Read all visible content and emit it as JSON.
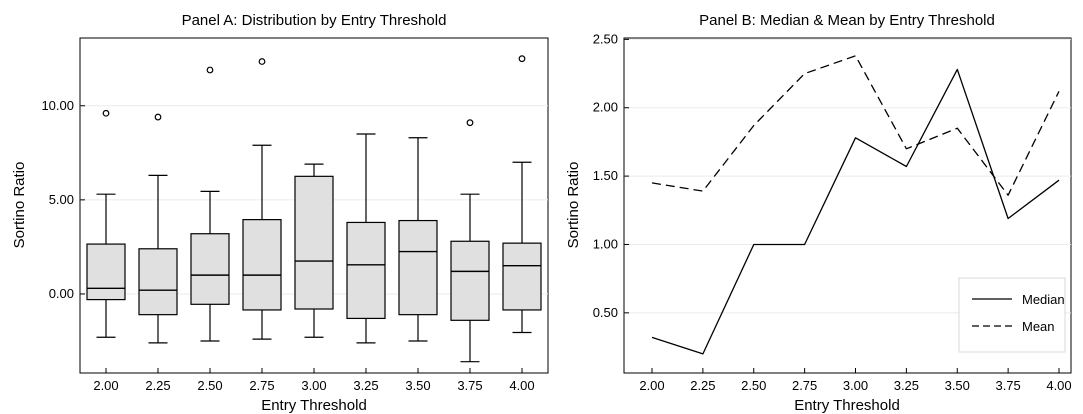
{
  "chart_data": [
    {
      "type": "box",
      "title": "Panel A: Distribution by Entry Threshold",
      "xlabel": "Entry Threshold",
      "ylabel": "Sortino Ratio",
      "categories": [
        "2.00",
        "2.25",
        "2.50",
        "2.75",
        "3.00",
        "3.25",
        "3.50",
        "3.75",
        "4.00"
      ],
      "ylim": [
        -4.2,
        13.6
      ],
      "yticks": [
        0,
        5,
        10
      ],
      "ytick_labels": [
        "0.00",
        "5.00",
        "10.00"
      ],
      "grid": true,
      "boxes": [
        {
          "whisker_low": -2.3,
          "q1": -0.3,
          "median": 0.3,
          "q3": 2.65,
          "whisker_high": 5.3,
          "outliers": [
            9.6
          ]
        },
        {
          "whisker_low": -2.6,
          "q1": -1.1,
          "median": 0.2,
          "q3": 2.4,
          "whisker_high": 6.3,
          "outliers": [
            9.4
          ]
        },
        {
          "whisker_low": -2.5,
          "q1": -0.55,
          "median": 1.0,
          "q3": 3.2,
          "whisker_high": 5.45,
          "outliers": [
            11.9
          ]
        },
        {
          "whisker_low": -2.4,
          "q1": -0.85,
          "median": 1.0,
          "q3": 3.95,
          "whisker_high": 7.9,
          "outliers": [
            12.35
          ]
        },
        {
          "whisker_low": -2.3,
          "q1": -0.8,
          "median": 1.75,
          "q3": 6.25,
          "whisker_high": 6.9,
          "outliers": []
        },
        {
          "whisker_low": -2.6,
          "q1": -1.3,
          "median": 1.55,
          "q3": 3.8,
          "whisker_high": 8.5,
          "outliers": []
        },
        {
          "whisker_low": -2.5,
          "q1": -1.1,
          "median": 2.25,
          "q3": 3.9,
          "whisker_high": 8.3,
          "outliers": []
        },
        {
          "whisker_low": -3.6,
          "q1": -1.4,
          "median": 1.2,
          "q3": 2.8,
          "whisker_high": 5.3,
          "outliers": [
            9.1
          ]
        },
        {
          "whisker_low": -2.05,
          "q1": -0.85,
          "median": 1.5,
          "q3": 2.7,
          "whisker_high": 7.0,
          "outliers": [
            12.5
          ]
        }
      ]
    },
    {
      "type": "line",
      "title": "Panel B: Median & Mean by Entry Threshold",
      "xlabel": "Entry Threshold",
      "ylabel": "Sortino Ratio",
      "categories": [
        "2.00",
        "2.25",
        "2.50",
        "2.75",
        "3.00",
        "3.25",
        "3.50",
        "3.75",
        "4.00"
      ],
      "ylim": [
        0.06,
        2.51
      ],
      "yticks": [
        0.5,
        1.0,
        1.5,
        2.0,
        2.5
      ],
      "ytick_labels": [
        "0.50",
        "1.00",
        "1.50",
        "2.00",
        "2.50"
      ],
      "grid": true,
      "legend_position": "bottom-right",
      "series": [
        {
          "name": "Median",
          "style": "solid",
          "values": [
            0.32,
            0.2,
            1.0,
            1.0,
            1.78,
            1.57,
            2.28,
            1.19,
            1.47
          ]
        },
        {
          "name": "Mean",
          "style": "dashed",
          "values": [
            1.45,
            1.39,
            1.87,
            2.25,
            2.38,
            1.7,
            1.85,
            1.36,
            2.12
          ]
        }
      ]
    }
  ]
}
